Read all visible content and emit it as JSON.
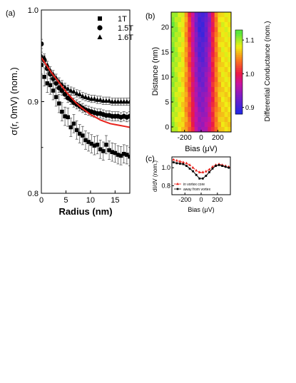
{
  "chart_data": [
    {
      "panel": "(a)",
      "type": "scatter",
      "xlabel": "Radius (nm)",
      "ylabel": "σ(r, 0mV) (nom.)",
      "xlim": [
        0,
        18
      ],
      "ylim": [
        0.8,
        1.0
      ],
      "xticks": [
        0,
        5,
        10,
        15
      ],
      "yticks": [
        0.8,
        0.9,
        1.0
      ],
      "legend_placement": "top-right",
      "x": [
        0,
        0.6,
        1.2,
        1.8,
        2.4,
        3.0,
        3.6,
        4.2,
        4.8,
        5.4,
        6.0,
        6.6,
        7.2,
        7.8,
        8.4,
        9.0,
        9.6,
        10.2,
        10.8,
        11.4,
        12.0,
        12.6,
        13.2,
        13.8,
        14.4,
        15.0,
        15.6,
        16.2,
        16.8,
        17.4,
        18.0
      ],
      "series": [
        {
          "name": "1T",
          "marker": "square",
          "values": [
            0.94,
            0.927,
            0.92,
            0.918,
            0.912,
            0.905,
            0.898,
            0.889,
            0.884,
            0.883,
            0.872,
            0.876,
            0.869,
            0.865,
            0.863,
            0.858,
            0.856,
            0.854,
            0.852,
            0.853,
            0.848,
            0.846,
            0.853,
            0.847,
            0.845,
            0.844,
            0.842,
            0.841,
            0.843,
            0.842,
            0.84
          ],
          "error": 0.01
        },
        {
          "name": "1.5T",
          "marker": "circle",
          "values": [
            0.963,
            0.945,
            0.936,
            0.93,
            0.925,
            0.92,
            0.915,
            0.912,
            0.908,
            0.904,
            0.902,
            0.899,
            0.897,
            0.895,
            0.893,
            0.891,
            0.89,
            0.889,
            0.888,
            0.887,
            0.887,
            0.886,
            0.885,
            0.885,
            0.884,
            0.884,
            0.884,
            0.883,
            0.884,
            0.883,
            0.884
          ],
          "error": 0.005
        },
        {
          "name": "1.6T",
          "marker": "triangle",
          "values": [
            0.95,
            0.948,
            0.94,
            0.934,
            0.93,
            0.926,
            0.922,
            0.919,
            0.916,
            0.914,
            0.912,
            0.911,
            0.909,
            0.908,
            0.906,
            0.905,
            0.904,
            0.903,
            0.903,
            0.902,
            0.902,
            0.901,
            0.901,
            0.901,
            0.9,
            0.9,
            0.9,
            0.9,
            0.9,
            0.9,
            0.9
          ],
          "error": 0.004
        },
        {
          "name": "",
          "marker": "line",
          "color": "#e8221c",
          "x": [
            0,
            1,
            2,
            3,
            4,
            5,
            6,
            7,
            8,
            9,
            10,
            11,
            12,
            13,
            14,
            15,
            16,
            17,
            18
          ],
          "values": [
            0.948,
            0.94,
            0.932,
            0.925,
            0.918,
            0.911,
            0.905,
            0.899,
            0.894,
            0.89,
            0.886,
            0.883,
            0.88,
            0.878,
            0.876,
            0.875,
            0.874,
            0.873,
            0.872
          ]
        }
      ]
    },
    {
      "panel": "(b)",
      "type": "heatmap",
      "xlabel": "Bias (μV)",
      "ylabel": "Distance (nm)",
      "colorbar_label": "Differential Conductance (nom.)",
      "xlim": [
        -360,
        360
      ],
      "ylim": [
        -1,
        23
      ],
      "xticks": [
        -200,
        0,
        200
      ],
      "yticks": [
        0,
        5,
        10,
        15,
        20
      ],
      "colorbar_ticks": [
        0.9,
        1.0,
        1.1
      ],
      "colorbar_range": [
        0.88,
        1.13
      ],
      "bias": [
        -340,
        -300,
        -260,
        -220,
        -180,
        -140,
        -100,
        -60,
        -20,
        20,
        60,
        100,
        140,
        180,
        220,
        260,
        300,
        340
      ],
      "profile_far": [
        1.11,
        1.1,
        1.09,
        1.08,
        1.05,
        1.01,
        0.97,
        0.93,
        0.9,
        0.9,
        0.92,
        0.95,
        1.0,
        1.04,
        1.07,
        1.08,
        1.08,
        1.08
      ],
      "profile_near": [
        1.1,
        1.09,
        1.08,
        1.07,
        1.05,
        1.03,
        1.0,
        0.97,
        0.95,
        0.95,
        0.96,
        0.98,
        1.01,
        1.04,
        1.06,
        1.07,
        1.07,
        1.07
      ],
      "distance_rows": 24
    },
    {
      "panel": "(c)",
      "type": "line",
      "xlabel": "Bias (μV)",
      "ylabel": "dI/dV (nom.)",
      "xlim": [
        -360,
        360
      ],
      "ylim": [
        0.7,
        1.12
      ],
      "xticks": [
        -200,
        0,
        200
      ],
      "yticks": [
        0.8,
        1.0
      ],
      "legend_placement": "bottom-left",
      "x": [
        -340,
        -300,
        -260,
        -220,
        -180,
        -140,
        -100,
        -60,
        -20,
        20,
        60,
        100,
        140,
        180,
        220,
        260,
        300,
        340
      ],
      "series": [
        {
          "name": "in vortex core",
          "color": "#e8221c",
          "marker": "triangle",
          "values": [
            1.09,
            1.08,
            1.07,
            1.06,
            1.05,
            1.03,
            1.0,
            0.97,
            0.95,
            0.95,
            0.96,
            0.98,
            1.01,
            1.03,
            1.04,
            1.03,
            1.02,
            1.01
          ]
        },
        {
          "name": "away from vortex",
          "color": "#000000",
          "marker": "square",
          "values": [
            1.06,
            1.05,
            1.045,
            1.04,
            1.02,
            0.99,
            0.96,
            0.92,
            0.88,
            0.88,
            0.91,
            0.95,
            0.99,
            1.02,
            1.03,
            1.02,
            1.01,
            1.0
          ]
        }
      ]
    }
  ],
  "labels": {
    "panel_a": "(a)",
    "panel_b": "(b)",
    "panel_c": "(c)"
  }
}
